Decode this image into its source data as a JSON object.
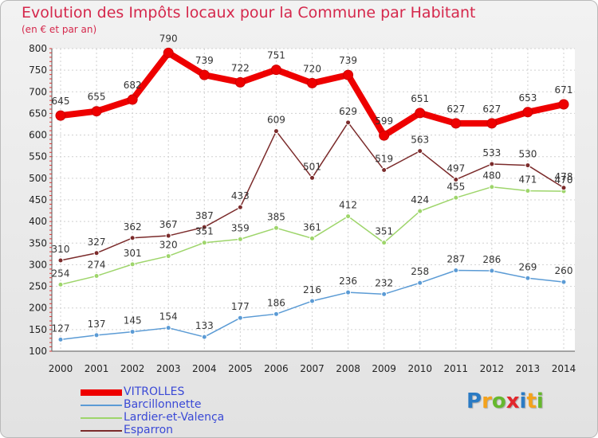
{
  "title": "Evolution des Impôts locaux pour la Commune par Habitant",
  "subtitle": "(en € et par an)",
  "logo": {
    "letters": [
      "P",
      "r",
      "o",
      "x",
      "i",
      "t",
      "i"
    ],
    "colors": [
      "#2b7bc4",
      "#f4a21c",
      "#66b82e",
      "#e2272c",
      "#2b7bc4",
      "#f4a21c",
      "#66b82e"
    ]
  },
  "chart_data": {
    "type": "line",
    "title": "Evolution des Impôts locaux pour la Commune par Habitant",
    "subtitle": "(en € et par an)",
    "x": [
      "2000",
      "2001",
      "2002",
      "2003",
      "2004",
      "2005",
      "2006",
      "2007",
      "2008",
      "2009",
      "2010",
      "2011",
      "2012",
      "2013",
      "2014"
    ],
    "ylim": [
      100,
      800
    ],
    "yticks": [
      100,
      150,
      200,
      250,
      300,
      350,
      400,
      450,
      500,
      550,
      600,
      650,
      700,
      750,
      800
    ],
    "grid": true,
    "legend_position": "bottom-left",
    "series": [
      {
        "name": "VITROLLES",
        "color": "#ee0000",
        "values": [
          645,
          655,
          682,
          790,
          739,
          722,
          751,
          720,
          739,
          599,
          651,
          627,
          627,
          653,
          671
        ]
      },
      {
        "name": "Barcillonnette",
        "color": "#5b9bd5",
        "values": [
          127,
          137,
          145,
          154,
          133,
          177,
          186,
          216,
          236,
          232,
          258,
          287,
          286,
          269,
          260
        ]
      },
      {
        "name": "Lardier-et-Valença",
        "color": "#9ed56b",
        "values": [
          254,
          274,
          301,
          320,
          351,
          359,
          385,
          361,
          412,
          351,
          424,
          455,
          480,
          471,
          470
        ]
      },
      {
        "name": "Esparron",
        "color": "#7b2b2b",
        "values": [
          310,
          327,
          362,
          367,
          387,
          433,
          609,
          501,
          629,
          519,
          563,
          497,
          533,
          530,
          478
        ]
      }
    ]
  }
}
